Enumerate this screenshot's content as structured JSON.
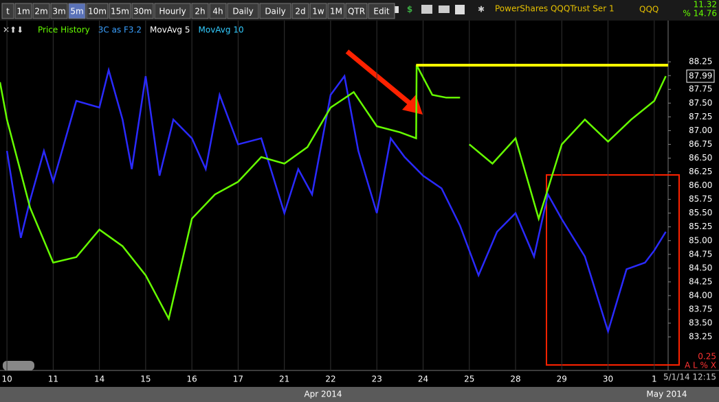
{
  "toolbar": {
    "buttons": [
      "t",
      "1m",
      "2m",
      "3m",
      "5m",
      "10m",
      "15m",
      "30m",
      "Hourly",
      "2h",
      "4h",
      "Daily",
      "Daily",
      "2d",
      "1w",
      "1M",
      "QTR",
      "Edit"
    ],
    "selected": 4
  },
  "header": {
    "title": "PowerShares QQQTrust Ser 1",
    "symbol": "QQQ",
    "stat1": "11.32",
    "stat2": "% 14.76"
  },
  "footer": {
    "months": [
      "Apr 2014",
      "May 2014"
    ],
    "timestamp": "5/1/14 12:15",
    "scale_note": "0.25",
    "scale_buttons": "A L % X"
  },
  "chart_data": {
    "type": "line",
    "legend_extra": [
      {
        "name": "MovAvg 5",
        "color": "#ffffff"
      },
      {
        "name": "MovAvg 10",
        "color": "#33ccff"
      }
    ],
    "last_price_label": {
      "value": 87.99,
      "label": "87.99"
    },
    "reference_line": {
      "value": 88.19,
      "color": "#ffff00",
      "x": [
        8.85,
        14.3
      ]
    },
    "series": [
      {
        "name": "Price History",
        "color": "#66ff00",
        "x": [
          -0.15,
          0,
          0.5,
          1,
          1.5,
          2,
          2.5,
          3,
          3.5,
          4,
          4.5,
          5,
          5.5,
          6,
          6.5,
          7,
          7.5,
          8,
          8.5,
          8.85,
          8.86,
          9.2,
          9.5,
          9.8,
          9.9,
          10,
          10.5,
          11,
          11.5,
          12,
          12.5,
          13,
          13.5,
          14,
          14.25
        ],
        "values": [
          87.88,
          87.2,
          85.6,
          84.6,
          84.7,
          85.2,
          84.9,
          84.37,
          83.58,
          85.4,
          85.84,
          86.07,
          86.52,
          86.4,
          86.7,
          87.42,
          87.7,
          87.08,
          86.97,
          86.86,
          88.19,
          87.65,
          87.6,
          87.6,
          null,
          86.75,
          86.4,
          86.86,
          85.4,
          86.75,
          87.2,
          86.8,
          87.2,
          87.54,
          87.99
        ]
      },
      {
        "name": "3C as F3.2",
        "color": "#2a2aff",
        "x": [
          0,
          0.3,
          0.5,
          0.8,
          1,
          1.5,
          2,
          2.2,
          2.5,
          2.7,
          3,
          3.3,
          3.6,
          4,
          4.3,
          4.6,
          5,
          5.5,
          6,
          6.3,
          6.6,
          7,
          7.3,
          7.6,
          8,
          8.3,
          8.6,
          9,
          9.4,
          9.8,
          10.2,
          10.6,
          11,
          11.4,
          11.7,
          12,
          12.5,
          13,
          13.4,
          13.8,
          14,
          14.25
        ],
        "values": [
          86.63,
          85.05,
          85.73,
          86.63,
          86.07,
          87.54,
          87.42,
          88.1,
          87.2,
          86.3,
          87.99,
          86.18,
          87.2,
          86.86,
          86.3,
          87.65,
          86.75,
          86.86,
          85.5,
          86.3,
          85.84,
          87.65,
          87.99,
          86.63,
          85.5,
          86.86,
          86.52,
          86.18,
          85.95,
          85.27,
          84.37,
          85.16,
          85.5,
          84.71,
          85.84,
          85.39,
          84.71,
          83.35,
          84.48,
          84.6,
          84.82,
          85.16
        ]
      }
    ],
    "xlim": [
      -0.15,
      14.3
    ],
    "xticks": [
      {
        "value": 0,
        "label": "10"
      },
      {
        "value": 1,
        "label": "11"
      },
      {
        "value": 2,
        "label": "14"
      },
      {
        "value": 3,
        "label": "15"
      },
      {
        "value": 4,
        "label": "16"
      },
      {
        "value": 5,
        "label": "17"
      },
      {
        "value": 6,
        "label": "21"
      },
      {
        "value": 7,
        "label": "22"
      },
      {
        "value": 8,
        "label": "23"
      },
      {
        "value": 9,
        "label": "24"
      },
      {
        "value": 10,
        "label": "25"
      },
      {
        "value": 11,
        "label": "28"
      },
      {
        "value": 12,
        "label": "29"
      },
      {
        "value": 13,
        "label": "30"
      },
      {
        "value": 14,
        "label": "1"
      }
    ],
    "ylim": [
      82.64,
      89.0
    ],
    "yticks": [
      83.25,
      {
        "value": 83.5,
        "label": "83.50"
      },
      83.75,
      {
        "value": 84,
        "label": "84.00"
      },
      84.25,
      {
        "value": 84.5,
        "label": "84.50"
      },
      84.75,
      {
        "value": 85,
        "label": "85.00"
      },
      85.25,
      {
        "value": 85.5,
        "label": "85.50"
      },
      85.75,
      {
        "value": 86,
        "label": "86.00"
      },
      86.25,
      {
        "value": 86.5,
        "label": "86.50"
      },
      86.75,
      {
        "value": 87,
        "label": "87.00"
      },
      87.25,
      {
        "value": 87.5,
        "label": "87.50"
      },
      87.75,
      {
        "value": 88,
        "label": "88.00"
      },
      88.25
    ],
    "grid": "x"
  }
}
